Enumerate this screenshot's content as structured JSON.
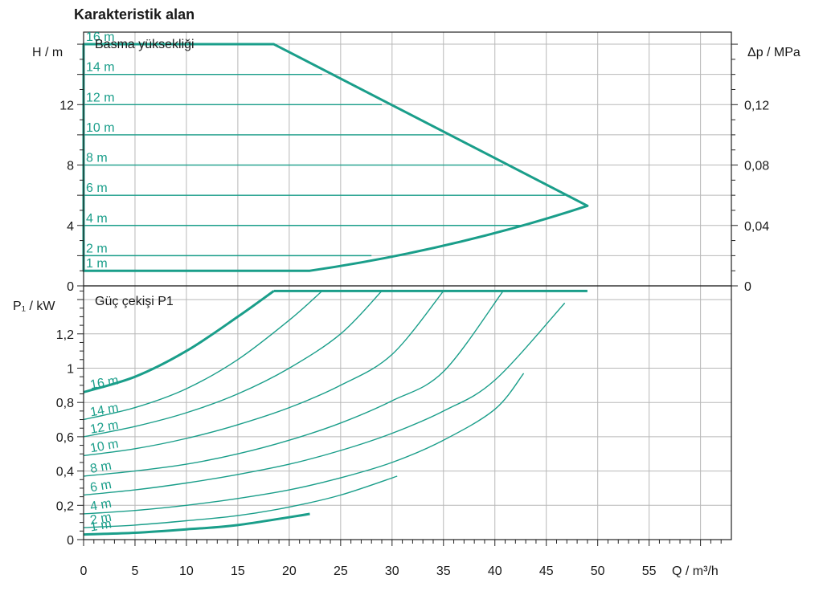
{
  "title": "Karakteristik alan",
  "colors": {
    "curve": "#1a9e8a",
    "grid": "#b8b8b8",
    "frame": "#222222"
  },
  "chart_data": [
    {
      "type": "line",
      "panel": "head",
      "title": "Basma yüksekliği",
      "xlabel": "Q / m³/h",
      "ylabel": "H / m",
      "y2label": "Δp / MPa",
      "xlim": [
        0,
        63
      ],
      "ylim": [
        0,
        16.8
      ],
      "y2lim": [
        0,
        0.168
      ],
      "x_ticks": [
        0,
        5,
        10,
        15,
        20,
        25,
        30,
        35,
        40,
        45,
        50,
        55
      ],
      "y_ticks": [
        0,
        4,
        8,
        12
      ],
      "y2_ticks": [
        0,
        0.04,
        0.08,
        0.12
      ],
      "y2_tick_labels": [
        "0",
        "0,04",
        "0,08",
        "0,12"
      ],
      "grid": true,
      "envelope": {
        "x": [
          0,
          18.5,
          49,
          30,
          22,
          0
        ],
        "y": [
          16,
          16,
          5.3,
          2,
          1,
          1
        ]
      },
      "series": [
        {
          "name": "16 m",
          "x": [
            0,
            18.5
          ],
          "y": [
            16,
            16
          ]
        },
        {
          "name": "14 m",
          "x": [
            0,
            23.2
          ],
          "y": [
            14,
            14
          ]
        },
        {
          "name": "12 m",
          "x": [
            0,
            29
          ],
          "y": [
            12,
            12
          ]
        },
        {
          "name": "10 m",
          "x": [
            0,
            35
          ],
          "y": [
            10,
            10
          ]
        },
        {
          "name": "8 m",
          "x": [
            0,
            40.8
          ],
          "y": [
            8,
            8
          ]
        },
        {
          "name": "6 m",
          "x": [
            0,
            46.8
          ],
          "y": [
            6,
            6
          ]
        },
        {
          "name": "4 m",
          "x": [
            0,
            42.5
          ],
          "y": [
            4,
            4
          ]
        },
        {
          "name": "2 m",
          "x": [
            0,
            28
          ],
          "y": [
            2,
            2
          ]
        },
        {
          "name": "1 m",
          "x": [
            0,
            22
          ],
          "y": [
            1,
            1
          ]
        }
      ]
    },
    {
      "type": "line",
      "panel": "power",
      "title": "Güç çekişi P1",
      "xlabel": "Q / m³/h",
      "ylabel": "P₁ / kW",
      "xlim": [
        0,
        63
      ],
      "ylim": [
        0,
        1.48
      ],
      "x_ticks": [
        0,
        5,
        10,
        15,
        20,
        25,
        30,
        35,
        40,
        45,
        50,
        55
      ],
      "y_ticks": [
        0,
        0.2,
        0.4,
        0.6,
        0.8,
        1,
        1.2
      ],
      "y_tick_labels": [
        "0",
        "0,2",
        "0,4",
        "0,6",
        "0,8",
        "1",
        "1,2"
      ],
      "grid": true,
      "envelope_top": {
        "x": [
          18.5,
          49
        ],
        "y": [
          1.45,
          1.45
        ]
      },
      "series": [
        {
          "name": "16 m",
          "x": [
            0,
            5,
            10,
            15,
            18.5
          ],
          "y": [
            0.86,
            0.95,
            1.1,
            1.3,
            1.45
          ]
        },
        {
          "name": "14 m",
          "x": [
            0,
            5,
            10,
            15,
            20,
            23.2
          ],
          "y": [
            0.7,
            0.77,
            0.88,
            1.05,
            1.28,
            1.45
          ]
        },
        {
          "name": "12 m",
          "x": [
            0,
            5,
            10,
            15,
            20,
            25,
            29
          ],
          "y": [
            0.6,
            0.66,
            0.74,
            0.85,
            1.0,
            1.2,
            1.45
          ]
        },
        {
          "name": "10 m",
          "x": [
            0,
            5,
            10,
            15,
            20,
            25,
            30,
            35
          ],
          "y": [
            0.49,
            0.53,
            0.59,
            0.67,
            0.77,
            0.9,
            1.08,
            1.45
          ]
        },
        {
          "name": "8 m",
          "x": [
            0,
            5,
            10,
            15,
            20,
            25,
            30,
            35,
            40.8
          ],
          "y": [
            0.37,
            0.4,
            0.44,
            0.5,
            0.58,
            0.68,
            0.81,
            0.98,
            1.45
          ]
        },
        {
          "name": "6 m",
          "x": [
            0,
            5,
            10,
            15,
            20,
            25,
            30,
            35,
            40,
            46.8
          ],
          "y": [
            0.26,
            0.29,
            0.33,
            0.38,
            0.44,
            0.52,
            0.62,
            0.75,
            0.93,
            1.38
          ]
        },
        {
          "name": "4 m",
          "x": [
            0,
            5,
            10,
            15,
            20,
            25,
            30,
            35,
            40,
            42.8
          ],
          "y": [
            0.15,
            0.17,
            0.2,
            0.24,
            0.29,
            0.36,
            0.45,
            0.58,
            0.76,
            0.97
          ]
        },
        {
          "name": "2 m",
          "x": [
            0,
            5,
            10,
            15,
            20,
            25,
            30.5
          ],
          "y": [
            0.07,
            0.085,
            0.11,
            0.14,
            0.19,
            0.26,
            0.37
          ]
        },
        {
          "name": "1 m",
          "x": [
            0,
            5,
            10,
            15,
            22
          ],
          "y": [
            0.03,
            0.04,
            0.06,
            0.085,
            0.15
          ]
        }
      ]
    }
  ]
}
